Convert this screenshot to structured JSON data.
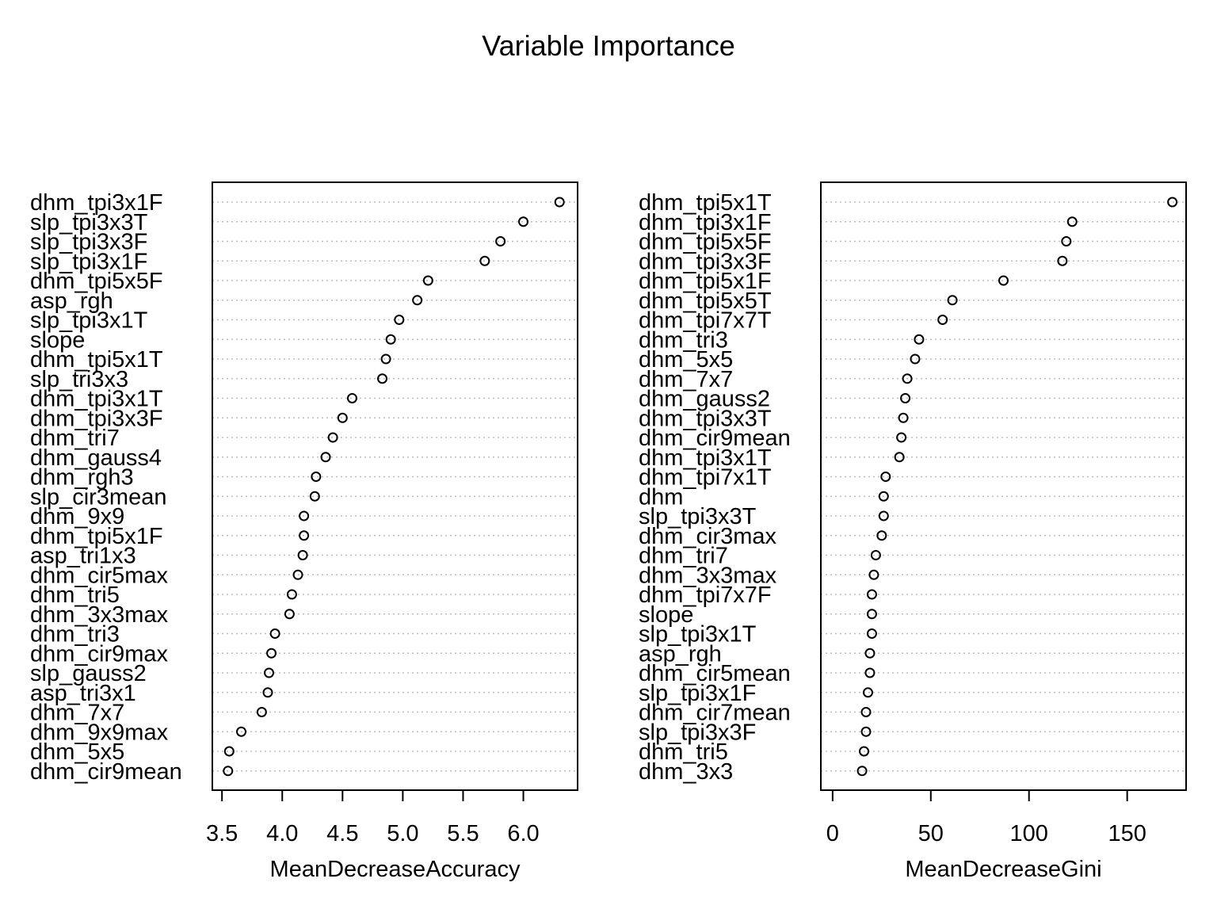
{
  "title": "Variable Importance",
  "chart_data": [
    {
      "type": "scatter",
      "xlabel": "MeanDecreaseAccuracy",
      "xlim": [
        3.42,
        6.45
      ],
      "ticks": [
        "3.5",
        "4.0",
        "4.5",
        "5.0",
        "5.5",
        "6.0"
      ],
      "categories": [
        "dhm_tpi3x1F",
        "slp_tpi3x3T",
        "slp_tpi3x3F",
        "slp_tpi3x1F",
        "dhm_tpi5x5F",
        "asp_rgh",
        "slp_tpi3x1T",
        "slope",
        "dhm_tpi5x1T",
        "slp_tri3x3",
        "dhm_tpi3x1T",
        "dhm_tpi3x3F",
        "dhm_tri7",
        "dhm_gauss4",
        "dhm_rgh3",
        "slp_cir3mean",
        "dhm_9x9",
        "dhm_tpi5x1F",
        "asp_tri1x3",
        "dhm_cir5max",
        "dhm_tri5",
        "dhm_3x3max",
        "dhm_tri3",
        "dhm_cir9max",
        "slp_gauss2",
        "asp_tri3x1",
        "dhm_7x7",
        "dhm_9x9max",
        "dhm_5x5",
        "dhm_cir9mean"
      ],
      "values": [
        6.3,
        6.0,
        5.81,
        5.68,
        5.21,
        5.12,
        4.97,
        4.9,
        4.86,
        4.83,
        4.58,
        4.5,
        4.42,
        4.36,
        4.28,
        4.27,
        4.18,
        4.18,
        4.17,
        4.13,
        4.08,
        4.06,
        3.94,
        3.91,
        3.89,
        3.88,
        3.83,
        3.66,
        3.56,
        3.55
      ]
    },
    {
      "type": "scatter",
      "xlabel": "MeanDecreaseGini",
      "xlim": [
        -6,
        180
      ],
      "ticks": [
        "0",
        "50",
        "100",
        "150"
      ],
      "categories": [
        "dhm_tpi5x1T",
        "dhm_tpi3x1F",
        "dhm_tpi5x5F",
        "dhm_tpi3x3F",
        "dhm_tpi5x1F",
        "dhm_tpi5x5T",
        "dhm_tpi7x7T",
        "dhm_tri3",
        "dhm_5x5",
        "dhm_7x7",
        "dhm_gauss2",
        "dhm_tpi3x3T",
        "dhm_cir9mean",
        "dhm_tpi3x1T",
        "dhm_tpi7x1T",
        "dhm",
        "slp_tpi3x3T",
        "dhm_cir3max",
        "dhm_tri7",
        "dhm_3x3max",
        "dhm_tpi7x7F",
        "slope",
        "slp_tpi3x1T",
        "asp_rgh",
        "dhm_cir5mean",
        "slp_tpi3x1F",
        "dhm_cir7mean",
        "slp_tpi3x3F",
        "dhm_tri5",
        "dhm_3x3"
      ],
      "values": [
        173,
        122,
        119,
        117,
        87,
        61,
        56,
        44,
        42,
        38,
        37,
        36,
        35,
        34,
        27,
        26,
        26,
        25,
        22,
        21,
        20,
        20,
        20,
        19,
        19,
        18,
        17,
        17,
        16,
        15
      ]
    }
  ]
}
